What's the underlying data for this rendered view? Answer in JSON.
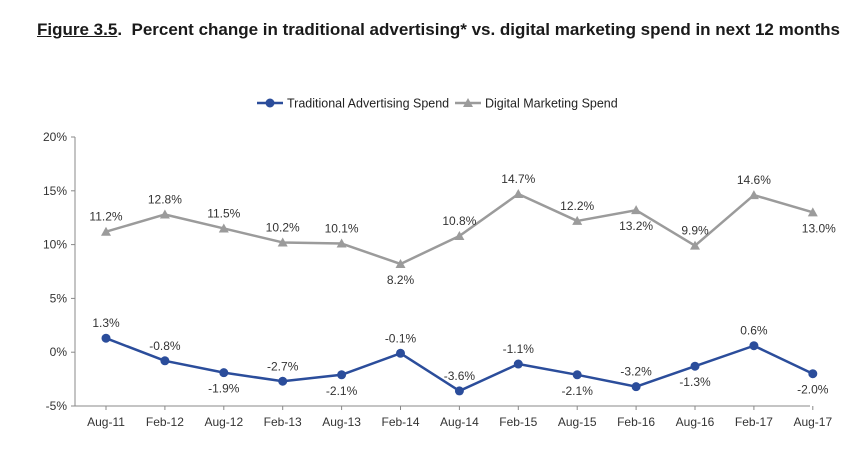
{
  "chart_data": {
    "type": "line",
    "title_prefix": "Figure 3.5",
    "title": "Percent change in traditional advertising* vs. digital marketing spend in next 12 months",
    "xlabel": "",
    "ylabel": "",
    "ylim": [
      -5,
      20
    ],
    "yticks": [
      "20%",
      "15%",
      "10%",
      "5%",
      "0%",
      "-5%"
    ],
    "ytick_values": [
      20,
      15,
      10,
      5,
      0,
      -5
    ],
    "legend_position": "top-center",
    "categories": [
      "Aug-11",
      "Feb-12",
      "Aug-12",
      "Feb-13",
      "Aug-13",
      "Feb-14",
      "Aug-14",
      "Feb-15",
      "Aug-15",
      "Feb-16",
      "Aug-16",
      "Feb-17",
      "Aug-17"
    ],
    "series": [
      {
        "name": "Traditional Advertising Spend",
        "color": "#2b4d9b",
        "marker": "circle",
        "values": [
          1.3,
          -0.8,
          -1.9,
          -2.7,
          -2.1,
          -0.1,
          -3.6,
          -1.1,
          -2.1,
          -3.2,
          -1.3,
          0.6,
          -2.0
        ],
        "labels": [
          "1.3%",
          "-0.8%",
          "-1.9%",
          "-2.7%",
          "-2.1%",
          "-0.1%",
          "-3.6%",
          "-1.1%",
          "-2.1%",
          "-3.2%",
          "-1.3%",
          "0.6%",
          "-2.0%"
        ]
      },
      {
        "name": "Digital Marketing Spend",
        "color": "#9b9b9b",
        "marker": "triangle",
        "values": [
          11.2,
          12.8,
          11.5,
          10.2,
          10.1,
          8.2,
          10.8,
          14.7,
          12.2,
          13.2,
          9.9,
          14.6,
          13.0
        ],
        "labels": [
          "11.2%",
          "12.8%",
          "11.5%",
          "10.2%",
          "10.1%",
          "8.2%",
          "10.8%",
          "14.7%",
          "12.2%",
          "13.2%",
          "9.9%",
          "14.6%",
          "13.0%"
        ]
      }
    ]
  }
}
